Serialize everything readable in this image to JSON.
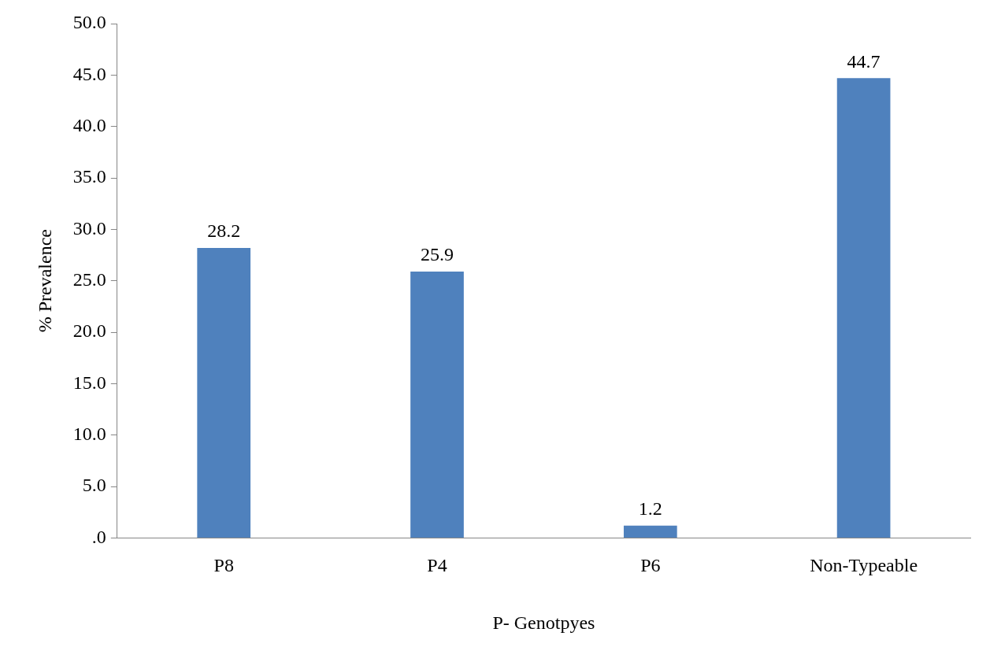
{
  "chart_data": {
    "type": "bar",
    "xlabel": "P- Genotpyes",
    "ylabel": "% Prevalence",
    "categories": [
      "P8",
      "P4",
      "P6",
      "Non-Typeable"
    ],
    "values": [
      28.2,
      25.9,
      1.2,
      44.7
    ],
    "color": "#4f81bd",
    "ylim": [
      0,
      50
    ],
    "yticks": [
      {
        "value": 0,
        "label": ".0"
      },
      {
        "value": 5,
        "label": "5.0"
      },
      {
        "value": 10,
        "label": "10.0"
      },
      {
        "value": 15,
        "label": "15.0"
      },
      {
        "value": 20,
        "label": "20.0"
      },
      {
        "value": 25,
        "label": "25.0"
      },
      {
        "value": 30,
        "label": "30.0"
      },
      {
        "value": 35,
        "label": "35.0"
      },
      {
        "value": 40,
        "label": "40.0"
      },
      {
        "value": 45,
        "label": "45.0"
      },
      {
        "value": 50,
        "label": "50.0"
      }
    ],
    "grid": false,
    "legend": false,
    "data_labels": true
  }
}
